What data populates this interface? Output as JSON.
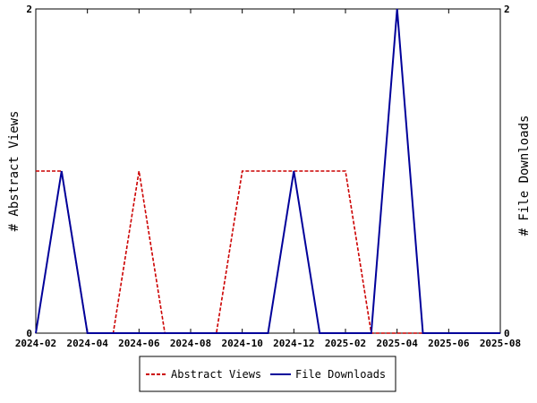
{
  "chart_data": {
    "type": "line",
    "x": [
      "2024-02",
      "2024-03",
      "2024-04",
      "2024-05",
      "2024-06",
      "2024-07",
      "2024-08",
      "2024-09",
      "2024-10",
      "2024-11",
      "2024-12",
      "2025-01",
      "2025-02",
      "2025-03",
      "2025-04",
      "2025-05",
      "2025-06",
      "2025-07",
      "2025-08"
    ],
    "x_tick_labels": [
      "2024-02",
      "2024-04",
      "2024-06",
      "2024-08",
      "2024-10",
      "2024-12",
      "2025-02",
      "2025-04",
      "2025-06",
      "2025-08"
    ],
    "series": [
      {
        "name": "Abstract Views",
        "axis": "left",
        "color": "#cc0000",
        "style": "dashed",
        "values": [
          1,
          1,
          0,
          0,
          1,
          0,
          0,
          0,
          1,
          1,
          1,
          1,
          1,
          0,
          0,
          0,
          0,
          0,
          0
        ]
      },
      {
        "name": "File Downloads",
        "axis": "right",
        "color": "#00009a",
        "style": "solid",
        "values": [
          0,
          1,
          0,
          0,
          0,
          0,
          0,
          0,
          0,
          0,
          1,
          0,
          0,
          0,
          2,
          0,
          0,
          0,
          0
        ]
      }
    ],
    "ylabel_left": "# Abstract Views",
    "ylabel_right": "# File Downloads",
    "ylim_left": [
      0,
      2
    ],
    "ylim_right": [
      0,
      2
    ],
    "yticks_left": [
      "0",
      "2"
    ],
    "yticks_right": [
      "0",
      "2"
    ],
    "grid": false,
    "legend_position": "bottom"
  }
}
